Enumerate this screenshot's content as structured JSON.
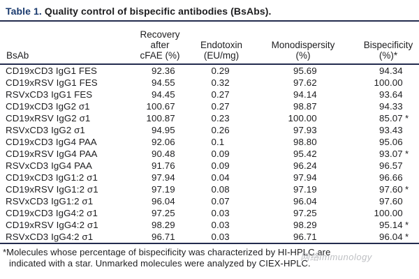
{
  "title": {
    "label": "Table 1.",
    "text": "Quality control of bispecific antibodies (BsAbs)."
  },
  "table": {
    "columns": {
      "bsab": "BsAb",
      "recovery_lines": [
        "Recovery",
        "after",
        "cFAE (%)"
      ],
      "endotoxin_lines": [
        "Endotoxin",
        "(EU/mg)"
      ],
      "monodispersity_lines": [
        "Monodispersity",
        "(%)"
      ],
      "bispecificity_lines": [
        "Bispecificity",
        "(%)*"
      ]
    },
    "rows": [
      {
        "bsab": "CD19xCD3 IgG1 FES",
        "recovery": "92.36",
        "endotoxin": "0.29",
        "monodispersity": "95.69",
        "bispecificity": "94.34",
        "star": false
      },
      {
        "bsab": "CD19xRSV IgG1 FES",
        "recovery": "94.55",
        "endotoxin": "0.32",
        "monodispersity": "97.62",
        "bispecificity": "100.00",
        "star": false
      },
      {
        "bsab": "RSVxCD3 IgG1 FES",
        "recovery": "94.45",
        "endotoxin": "0.27",
        "monodispersity": "94.14",
        "bispecificity": "93.64",
        "star": false
      },
      {
        "bsab": "CD19xCD3 IgG2 σ1",
        "recovery": "100.67",
        "endotoxin": "0.27",
        "monodispersity": "98.87",
        "bispecificity": "94.33",
        "star": false
      },
      {
        "bsab": "CD19xRSV IgG2 σ1",
        "recovery": "100.87",
        "endotoxin": "0.23",
        "monodispersity": "100.00",
        "bispecificity": "85.07",
        "star": true
      },
      {
        "bsab": "RSVxCD3 IgG2 σ1",
        "recovery": "94.95",
        "endotoxin": "0.26",
        "monodispersity": "97.93",
        "bispecificity": "93.43",
        "star": false
      },
      {
        "bsab": "CD19xCD3 IgG4 PAA",
        "recovery": "92.06",
        "endotoxin": "0.1",
        "monodispersity": "98.80",
        "bispecificity": "95.06",
        "star": false
      },
      {
        "bsab": "CD19xRSV IgG4 PAA",
        "recovery": "90.48",
        "endotoxin": "0.09",
        "monodispersity": "95.42",
        "bispecificity": "93.07",
        "star": true
      },
      {
        "bsab": "RSVxCD3 IgG4 PAA",
        "recovery": "91.76",
        "endotoxin": "0.09",
        "monodispersity": "96.24",
        "bispecificity": "96.57",
        "star": false
      },
      {
        "bsab": "CD19xCD3 IgG1:2 σ1",
        "recovery": "97.94",
        "endotoxin": "0.04",
        "monodispersity": "97.94",
        "bispecificity": "96.66",
        "star": false
      },
      {
        "bsab": "CD19xRSV IgG1:2 σ1",
        "recovery": "97.19",
        "endotoxin": "0.08",
        "monodispersity": "97.19",
        "bispecificity": "97.60",
        "star": true
      },
      {
        "bsab": "RSVxCD3 IgG1:2 σ1",
        "recovery": "96.04",
        "endotoxin": "0.07",
        "monodispersity": "96.04",
        "bispecificity": "97.60",
        "star": false
      },
      {
        "bsab": "CD19xCD3 IgG4:2 σ1",
        "recovery": "97.25",
        "endotoxin": "0.03",
        "monodispersity": "97.25",
        "bispecificity": "100.00",
        "star": false
      },
      {
        "bsab": "CD19xRSV IgG4:2 σ1",
        "recovery": "98.29",
        "endotoxin": "0.03",
        "monodispersity": "98.29",
        "bispecificity": "95.14",
        "star": true
      },
      {
        "bsab": "RSVxCD3 IgG4:2 σ1",
        "recovery": "96.71",
        "endotoxin": "0.03",
        "monodispersity": "96.71",
        "bispecificity": "96.04",
        "star": true
      }
    ]
  },
  "footnote": {
    "lines": [
      "*Molecules whose percentage of bispecificity was characterized by HI-HPLC are",
      "indicated with a star. Unmarked molecules were analyzed by CIEX-HPLC."
    ]
  },
  "watermark": {
    "text": "网络Immunology"
  },
  "colors": {
    "title_accent": "#1a3a6e",
    "rule": "#232b4e",
    "text": "#1d1d1f",
    "watermark": "#a9abb0"
  }
}
